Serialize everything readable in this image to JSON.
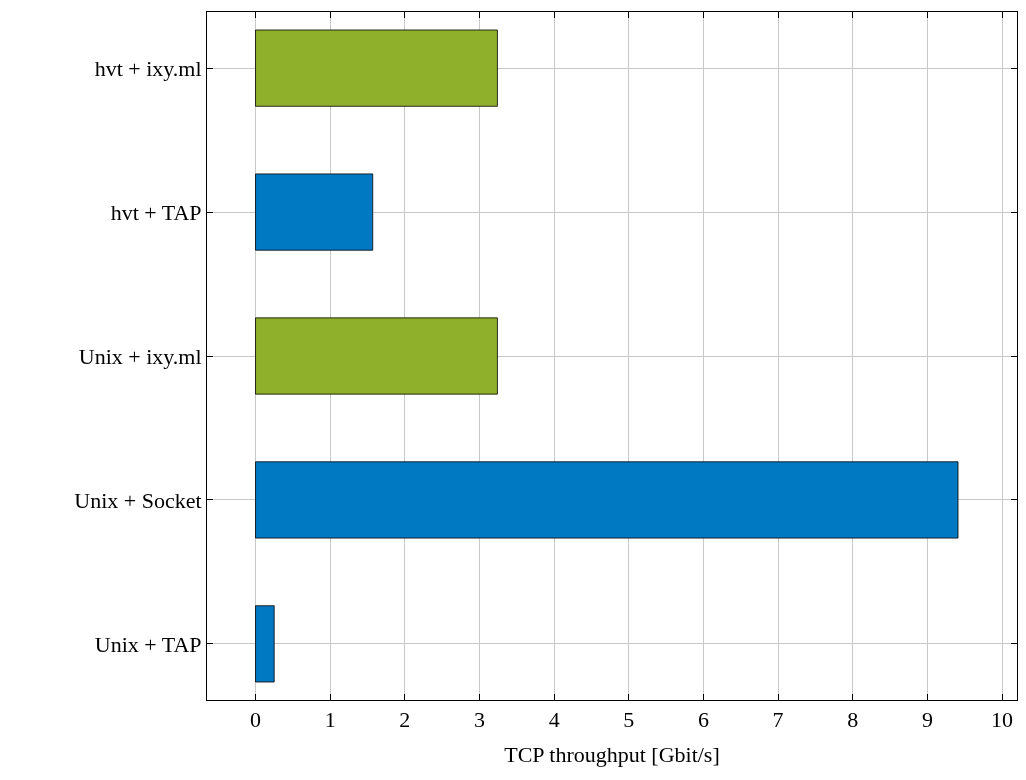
{
  "chart_data": {
    "type": "bar",
    "orientation": "horizontal",
    "xlabel": "TCP throughput [Gbit/s]",
    "categories": [
      "hvt + ixy.ml",
      "hvt + TAP",
      "Unix + ixy.ml",
      "Unix + Socket",
      "Unix + TAP"
    ],
    "values": [
      3.24,
      1.57,
      3.24,
      9.41,
      0.25
    ],
    "colors": [
      "#8fb02b",
      "#0078c2",
      "#8fb02b",
      "#0078c2",
      "#0078c2"
    ],
    "xlim": [
      -0.65,
      10.2
    ],
    "xticks": [
      0,
      1,
      2,
      3,
      4,
      5,
      6,
      7,
      8,
      9,
      10
    ],
    "grid": true
  }
}
